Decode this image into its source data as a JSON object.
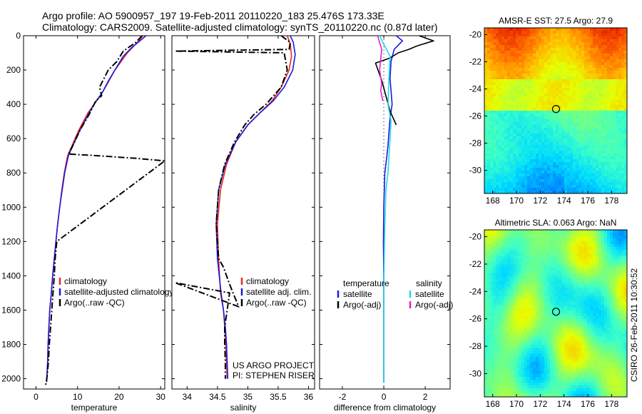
{
  "header": {
    "line1": "Argo profile: AO 5900957_197 19-Feb-2011 20110220_183 25.476S 173.33E",
    "line2": "Climatology: CARS2009. Satellite-adjusted climatology: synTS_20110220.nc (0.87d later)"
  },
  "colors": {
    "climatology": "#e8281e",
    "satellite": "#1a1ae0",
    "argo": "#000000",
    "sat_salinity": "#22d8e8",
    "argo_salinity_adj": "#e020c8"
  },
  "side_label": "CSIRO 26-Feb-2011 10:30:52",
  "chart_data": [
    {
      "id": "temperature",
      "type": "line",
      "xlabel": "temperature",
      "xlim": [
        -3,
        31
      ],
      "ylim": [
        2060,
        0
      ],
      "x_ticks": [
        0,
        10,
        20,
        30
      ],
      "y_ticks": [
        0,
        200,
        400,
        600,
        800,
        1000,
        1200,
        1400,
        1600,
        1800,
        2000
      ],
      "legend": [
        "climatology",
        "satellite-adjusted climatology",
        "Argo(..raw -QC)"
      ],
      "series": [
        {
          "name": "climatology",
          "color": "#e8281e",
          "style": "solid",
          "x": [
            25.8,
            24,
            22,
            20.5,
            19,
            17.2,
            15.5,
            14,
            12.5,
            10.3,
            8.5,
            7.6,
            6.8,
            6.2,
            5.7,
            5.2,
            4.8,
            4.4,
            4,
            3.7,
            3.3,
            3.1,
            2.9,
            2.8,
            2.7,
            2.6,
            2.55
          ],
          "y": [
            0,
            50,
            100,
            150,
            200,
            280,
            350,
            400,
            450,
            550,
            650,
            700,
            800,
            900,
            1000,
            1100,
            1200,
            1300,
            1400,
            1500,
            1600,
            1700,
            1800,
            1900,
            1950,
            2000,
            2020
          ]
        },
        {
          "name": "satellite-adjusted climatology",
          "color": "#1a1ae0",
          "style": "solid",
          "x": [
            26.5,
            25,
            23,
            21,
            19.5,
            17.5,
            16,
            14.2,
            12.8,
            10.6,
            8.7,
            7.8,
            6.9,
            6.3,
            5.7,
            5.2,
            4.8,
            4.4,
            4,
            3.7,
            3.3,
            3.1,
            2.9,
            2.8,
            2.7,
            2.6,
            2.55
          ],
          "y": [
            0,
            30,
            70,
            120,
            180,
            260,
            330,
            390,
            450,
            550,
            650,
            700,
            800,
            900,
            1000,
            1100,
            1200,
            1300,
            1400,
            1500,
            1600,
            1700,
            1800,
            1900,
            1950,
            2000,
            2020
          ]
        },
        {
          "name": "Argo(..raw -QC)",
          "color": "#000000",
          "style": "dashdot",
          "x": [
            25.5,
            24,
            21,
            19.5,
            17.4,
            15.3,
            15.8,
            14.4,
            13,
            10.6,
            8.7,
            7.8,
            15,
            24,
            31,
            5,
            4.6,
            4.4,
            4.1,
            3.8,
            3.5,
            3.2,
            3,
            2.8,
            2.6,
            2.4,
            2.2,
            2
          ],
          "y": [
            0,
            40,
            90,
            150,
            200,
            300,
            350,
            380,
            450,
            550,
            650,
            690,
            700,
            715,
            730,
            1200,
            1300,
            1400,
            1500,
            1600,
            1700,
            1800,
            1900,
            1950,
            2000,
            2030,
            2040,
            2040
          ]
        }
      ]
    },
    {
      "id": "salinity",
      "type": "line",
      "xlabel": "salinity",
      "xlim": [
        33.75,
        36.1
      ],
      "ylim": [
        2060,
        0
      ],
      "x_ticks": [
        34,
        34.5,
        35,
        35.5,
        36
      ],
      "legend": [
        "climatology",
        "satellite adj. clim.",
        "Argo(..raw -QC)"
      ],
      "annotation": [
        "US ARGO PROJECT",
        "PI: STEPHEN RISER"
      ],
      "series": [
        {
          "name": "climatology",
          "color": "#e8281e",
          "style": "solid",
          "x": [
            35.65,
            35.7,
            35.72,
            35.68,
            35.55,
            35.4,
            35.2,
            35,
            34.8,
            34.65,
            34.55,
            34.5,
            34.52,
            34.55,
            34.6,
            34.62,
            34.64,
            34.65,
            34.66
          ],
          "y": [
            0,
            50,
            120,
            200,
            300,
            380,
            450,
            520,
            620,
            750,
            900,
            1100,
            1300,
            1500,
            1600,
            1700,
            1800,
            1900,
            2000
          ]
        },
        {
          "name": "satellite adj. clim.",
          "color": "#1a1ae0",
          "style": "solid",
          "x": [
            35.7,
            35.75,
            35.78,
            35.74,
            35.6,
            35.42,
            35.2,
            35,
            34.8,
            34.63,
            34.52,
            34.48,
            34.5,
            34.56,
            34.6,
            34.63,
            34.65,
            34.66,
            34.67
          ],
          "y": [
            0,
            40,
            110,
            200,
            300,
            380,
            450,
            520,
            620,
            750,
            900,
            1100,
            1300,
            1500,
            1600,
            1700,
            1800,
            1900,
            2000
          ]
        },
        {
          "name": "Argo(..raw -QC)",
          "color": "#000000",
          "style": "dashdot",
          "x": [
            35.55,
            35.7,
            35.68,
            33.8,
            35.6,
            35.65,
            35.55,
            35.3,
            35.1,
            34.95,
            34.78,
            34.62,
            34.52,
            34.48,
            34.52,
            34.6,
            34.7,
            34.78,
            34.85,
            33.8,
            34.7,
            34.62,
            34.62,
            34.63,
            34.63
          ],
          "y": [
            0,
            40,
            80,
            90,
            100,
            200,
            300,
            400,
            460,
            520,
            620,
            750,
            900,
            1100,
            1300,
            1350,
            1450,
            1520,
            1580,
            1440,
            1500,
            1700,
            1800,
            1900,
            2000
          ]
        }
      ]
    },
    {
      "id": "difference",
      "type": "line",
      "xlabel": "difference from climatology",
      "xlim": [
        -3.1,
        3.2
      ],
      "ylim": [
        2060,
        0
      ],
      "x_ticks": [
        -2,
        0,
        2
      ],
      "legend_temperature": {
        "title": "temperature",
        "items": [
          "satellite",
          "Argo(-adj)"
        ]
      },
      "legend_salinity": {
        "title": "salinity",
        "items": [
          "satellite",
          "Argo(-adj)"
        ]
      },
      "series": [
        {
          "name": "temperature satellite",
          "color": "#1a1ae0",
          "style": "solid",
          "x": [
            0.6,
            0.9,
            0.5,
            0.35,
            0.3,
            0.4,
            0.3,
            0.25,
            0.2,
            0.15,
            0.05,
            0,
            -0.02,
            0,
            0,
            0,
            0,
            0,
            0
          ],
          "y": [
            0,
            30,
            80,
            150,
            250,
            400,
            480,
            560,
            640,
            700,
            800,
            1000,
            1200,
            1400,
            1600,
            1800,
            1900,
            2000,
            2020
          ]
        },
        {
          "name": "temperature Argo(-adj)",
          "color": "#000000",
          "style": "solid",
          "x": [
            1.7,
            2.4,
            1.6,
            1.2,
            0.7,
            0.3,
            -0.4,
            -0.1,
            0.3,
            0.6
          ],
          "y": [
            0,
            30,
            60,
            80,
            100,
            130,
            160,
            260,
            440,
            520
          ]
        },
        {
          "name": "salinity satellite",
          "color": "#22d8e8",
          "style": "solid",
          "x": [
            -0.2,
            0,
            0.3,
            0.25,
            0.2,
            0.35,
            0.3,
            0.25,
            0.2,
            0.1,
            0.05,
            0.02,
            0,
            0,
            0
          ],
          "y": [
            0,
            50,
            120,
            250,
            400,
            500,
            600,
            700,
            800,
            900,
            1100,
            1300,
            1500,
            1800,
            2020
          ]
        },
        {
          "name": "salinity Argo(-adj)",
          "color": "#e020c8",
          "style": "solid",
          "x": [
            -0.3,
            -0.1,
            -0.2,
            -0.1,
            -0.15,
            -0.05
          ],
          "y": [
            0,
            80,
            200,
            280,
            320,
            380
          ]
        }
      ]
    },
    {
      "id": "sst-map",
      "type": "heatmap",
      "title": "AMSR-E SST: 27.5 Argo: 27.9",
      "xlim": [
        167.3,
        179.3
      ],
      "ylim": [
        -31.7,
        -19.5
      ],
      "x_ticks": [
        168,
        170,
        172,
        174,
        176,
        178
      ],
      "y_ticks": [
        -20,
        -22,
        -24,
        -26,
        -28,
        -30
      ],
      "marker": {
        "lon": 173.33,
        "lat": -25.48
      }
    },
    {
      "id": "sla-map",
      "type": "heatmap",
      "title": "Altimetric SLA: 0.063 Argo: NaN",
      "xlim": [
        167.3,
        179.3
      ],
      "ylim": [
        -31.7,
        -19.5
      ],
      "x_ticks": [
        168,
        170,
        172,
        174,
        176,
        178
      ],
      "y_ticks": [
        -20,
        -22,
        -24,
        -26,
        -28,
        -30
      ],
      "marker": {
        "lon": 173.33,
        "lat": -25.48
      }
    }
  ]
}
